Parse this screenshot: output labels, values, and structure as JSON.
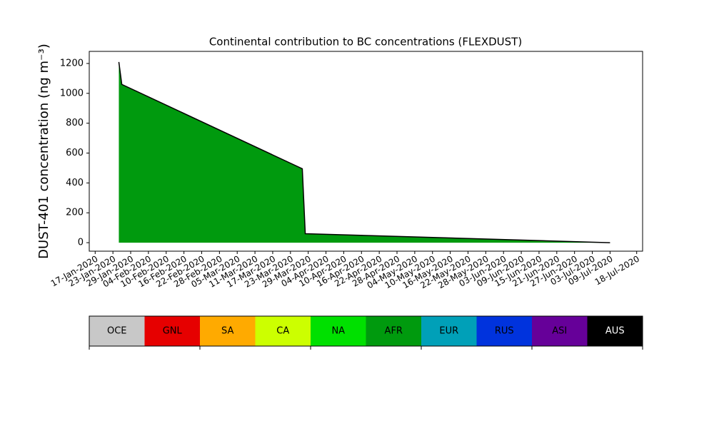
{
  "chart_data": {
    "type": "area",
    "title": "Continental contribution to BC concentrations (FLEXDUST)",
    "ylabel": "DUST-401 concentration (ng m⁻³)",
    "x": [
      "25-Jan-2020",
      "26-Jan-2020",
      "27-Mar-2020",
      "28-Mar-2020",
      "09-Jul-2020"
    ],
    "series": [
      {
        "name": "AFR",
        "color": "#009a0e",
        "values": [
          1210,
          1060,
          495,
          60,
          0
        ]
      }
    ],
    "edgecolor": "#000000",
    "xlim": [
      "15-Jan-2020",
      "20-Jul-2020"
    ],
    "xticks": [
      "17-Jan-2020",
      "23-Jan-2020",
      "29-Jan-2020",
      "04-Feb-2020",
      "10-Feb-2020",
      "16-Feb-2020",
      "22-Feb-2020",
      "28-Feb-2020",
      "05-Mar-2020",
      "11-Mar-2020",
      "17-Mar-2020",
      "23-Mar-2020",
      "29-Mar-2020",
      "04-Apr-2020",
      "10-Apr-2020",
      "16-Apr-2020",
      "22-Apr-2020",
      "28-Apr-2020",
      "04-May-2020",
      "10-May-2020",
      "16-May-2020",
      "22-May-2020",
      "28-May-2020",
      "03-Jun-2020",
      "09-Jun-2020",
      "15-Jun-2020",
      "21-Jun-2020",
      "27-Jun-2020",
      "03-Jul-2020",
      "09-Jul-2020",
      "18-Jul-2020"
    ],
    "ylim": [
      -57,
      1281
    ],
    "yticks": [
      0,
      200,
      400,
      600,
      800,
      1000,
      1200
    ],
    "colorbar": {
      "labels": [
        "OCE",
        "GNL",
        "SA",
        "CA",
        "NA",
        "AFR",
        "EUR",
        "RUS",
        "ASI",
        "AUS"
      ],
      "colors": [
        "#c8c8c8",
        "#e60000",
        "#ffaa00",
        "#ccff00",
        "#00e000",
        "#009a0e",
        "#00a0b8",
        "#0033dd",
        "#660099",
        "#000000"
      ]
    }
  }
}
